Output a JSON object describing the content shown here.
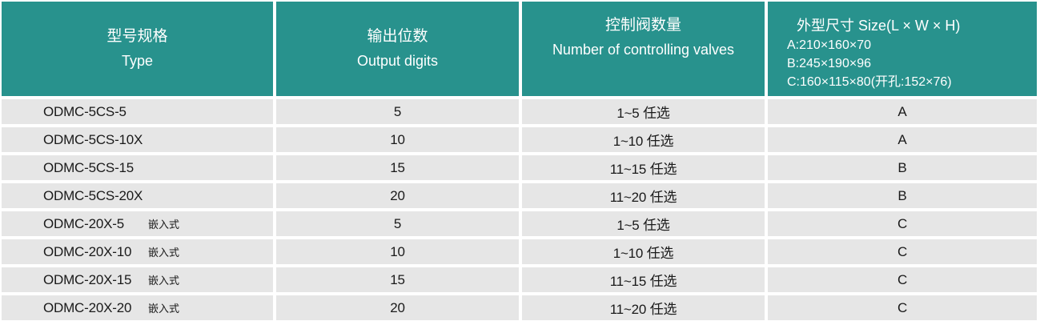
{
  "colors": {
    "header_bg": "#28928d",
    "header_text": "#ffffff",
    "row_bg": "#e6e6e6",
    "row_text": "#1a1a1a",
    "divider": "#ffffff"
  },
  "header": {
    "type": {
      "zh": "型号规格",
      "en": "Type"
    },
    "output": {
      "zh": "输出位数",
      "en": "Output digits"
    },
    "valves": {
      "zh": "控制阀数量",
      "en": "Number of controlling valves"
    },
    "size": {
      "title": "外型尺寸 Size(L × W × H)",
      "lines": [
        "A:210×160×70",
        "B:245×190×96",
        "C:160×115×80(开孔:152×76)"
      ]
    }
  },
  "rows": [
    {
      "model": "ODMC-5CS-5",
      "suffix": "",
      "digits": "5",
      "valves": "1~5 任选",
      "size": "A"
    },
    {
      "model": "ODMC-5CS-10X",
      "suffix": "",
      "digits": "10",
      "valves": "1~10 任选",
      "size": "A"
    },
    {
      "model": "ODMC-5CS-15",
      "suffix": "",
      "digits": "15",
      "valves": "11~15 任选",
      "size": "B"
    },
    {
      "model": "ODMC-5CS-20X",
      "suffix": "",
      "digits": "20",
      "valves": "11~20 任选",
      "size": "B"
    },
    {
      "model": "ODMC-20X-5",
      "suffix": "嵌入式",
      "digits": "5",
      "valves": "1~5 任选",
      "size": "C"
    },
    {
      "model": "ODMC-20X-10",
      "suffix": "嵌入式",
      "digits": "10",
      "valves": "1~10 任选",
      "size": "C"
    },
    {
      "model": "ODMC-20X-15",
      "suffix": "嵌入式",
      "digits": "15",
      "valves": "11~15 任选",
      "size": "C"
    },
    {
      "model": "ODMC-20X-20",
      "suffix": "嵌入式",
      "digits": "20",
      "valves": "11~20 任选",
      "size": "C"
    }
  ]
}
